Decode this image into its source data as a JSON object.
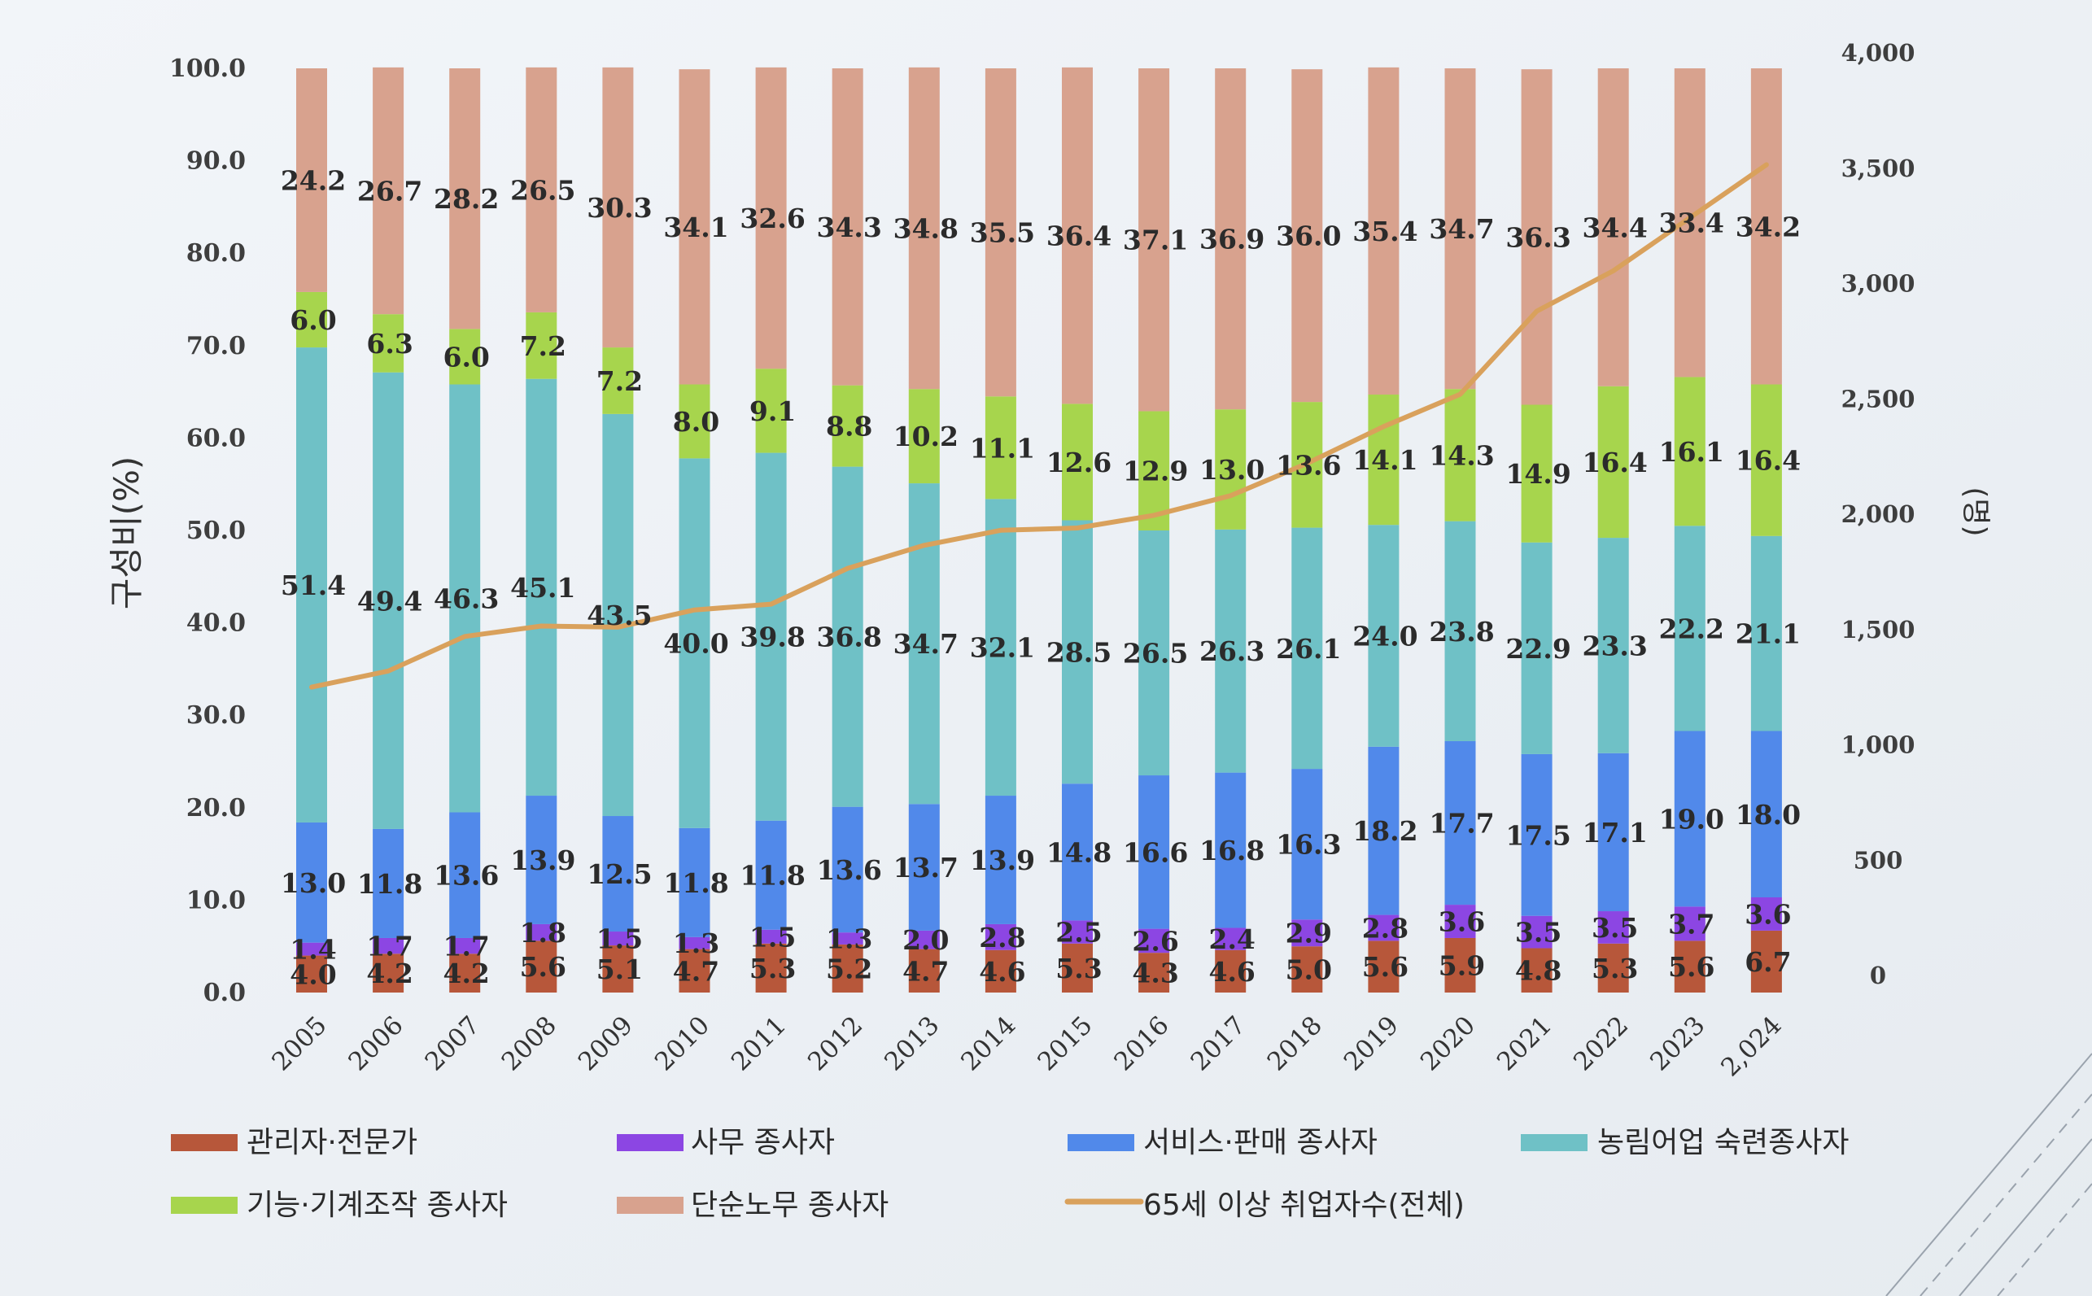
{
  "chart_data": {
    "type": "bar",
    "stacked": true,
    "title": "",
    "xlabel": "",
    "ylabel": "구성비(%)",
    "y2label": "(명)",
    "ylim": [
      0,
      100
    ],
    "y2lim": [
      0,
      4000
    ],
    "categories": [
      "2005",
      "2006",
      "2007",
      "2008",
      "2009",
      "2010",
      "2011",
      "2012",
      "2013",
      "2014",
      "2015",
      "2016",
      "2017",
      "2018",
      "2019",
      "2020",
      "2021",
      "2022",
      "2023",
      "2,024"
    ],
    "yticks": [
      "0.0",
      "10.0",
      "20.0",
      "30.0",
      "40.0",
      "50.0",
      "60.0",
      "70.0",
      "80.0",
      "90.0",
      "100.0"
    ],
    "y2ticks": [
      "0",
      "500",
      "1,000",
      "1,500",
      "2,000",
      "2,500",
      "3,000",
      "3,500",
      "4,000"
    ],
    "series": [
      {
        "name": "관리자·전문가",
        "color": "#b7573a",
        "values": [
          4.0,
          4.2,
          4.2,
          5.6,
          5.1,
          4.7,
          5.3,
          5.2,
          4.7,
          4.6,
          5.3,
          4.3,
          4.6,
          5.0,
          5.6,
          5.9,
          4.8,
          5.3,
          5.6,
          6.7
        ]
      },
      {
        "name": "사무 종사자",
        "color": "#8c46e3",
        "values": [
          1.4,
          1.7,
          1.7,
          1.8,
          1.5,
          1.3,
          1.5,
          1.3,
          2.0,
          2.8,
          2.5,
          2.6,
          2.4,
          2.9,
          2.8,
          3.6,
          3.5,
          3.5,
          3.7,
          3.6
        ]
      },
      {
        "name": "서비스·판매 종사자",
        "color": "#5189ea",
        "values": [
          13.0,
          11.8,
          13.6,
          13.9,
          12.5,
          11.8,
          11.8,
          13.6,
          13.7,
          13.9,
          14.8,
          16.6,
          16.8,
          16.3,
          18.2,
          17.7,
          17.5,
          17.1,
          19.0,
          18.0
        ]
      },
      {
        "name": "농림어업 숙련종사자",
        "color": "#6fc1c6",
        "values": [
          51.4,
          49.4,
          46.3,
          45.1,
          43.5,
          40.0,
          39.8,
          36.8,
          34.7,
          32.1,
          28.5,
          26.5,
          26.3,
          26.1,
          24.0,
          23.8,
          22.9,
          23.3,
          22.2,
          21.1
        ]
      },
      {
        "name": "기능·기계조작 종사자",
        "color": "#a7d54d",
        "values": [
          6.0,
          6.3,
          6.0,
          7.2,
          7.2,
          8.0,
          9.1,
          8.8,
          10.2,
          11.1,
          12.6,
          12.9,
          13.0,
          13.6,
          14.1,
          14.3,
          14.9,
          16.4,
          16.1,
          16.4
        ]
      },
      {
        "name": "단순노무 종사자",
        "color": "#d8a28e",
        "values": [
          24.2,
          26.7,
          28.2,
          26.5,
          30.3,
          34.1,
          32.6,
          34.3,
          34.8,
          35.5,
          36.4,
          37.1,
          36.9,
          36.0,
          35.4,
          34.7,
          36.3,
          34.4,
          33.4,
          34.2
        ]
      }
    ],
    "line": {
      "name": "65세 이상 취업자수(전체)",
      "color": "#d9a15c",
      "values": [
        1250,
        1320,
        1470,
        1515,
        1510,
        1585,
        1610,
        1765,
        1865,
        1930,
        1940,
        1995,
        2080,
        2220,
        2380,
        2520,
        2880,
        3055,
        3285,
        3515
      ]
    }
  }
}
